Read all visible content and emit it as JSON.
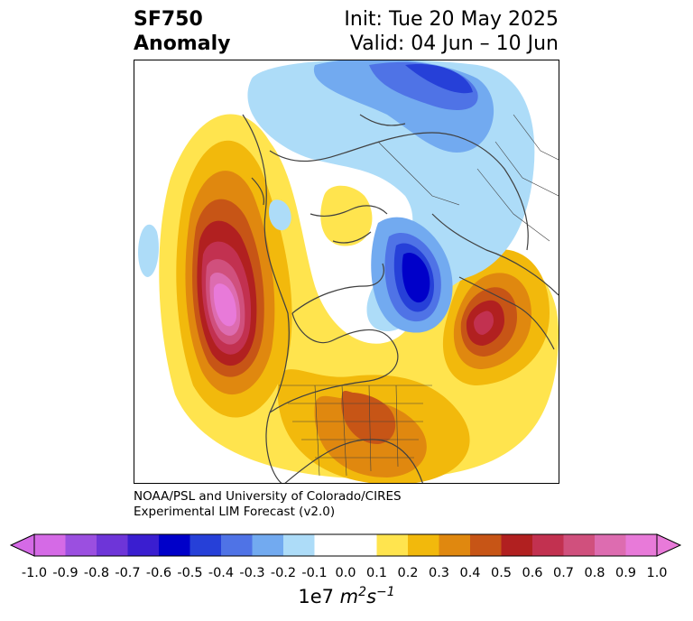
{
  "header": {
    "variable": "SF750",
    "field": "Anomaly",
    "init": "Init: Tue 20 May 2025",
    "valid": "Valid: 04 Jun – 10 Jun"
  },
  "credit": {
    "line1": "NOAA/PSL and University of Colorado/CIRES",
    "line2": "Experimental LIM Forecast (v2.0)"
  },
  "colorbar": {
    "ticks": [
      "-1.0",
      "-0.9",
      "-0.8",
      "-0.7",
      "-0.6",
      "-0.5",
      "-0.4",
      "-0.3",
      "-0.2",
      "-0.1",
      "0.0",
      "0.1",
      "0.2",
      "0.3",
      "0.4",
      "0.5",
      "0.6",
      "0.7",
      "0.8",
      "0.9",
      "1.0"
    ],
    "colors": [
      "#d56ae6",
      "#9b4fe0",
      "#6e35d8",
      "#3a1ed0",
      "#0000c9",
      "#2640d8",
      "#4f73e6",
      "#72aaf0",
      "#addcf8",
      "#ffffff",
      "#ffffff",
      "#ffe44e",
      "#f2b90c",
      "#e0880f",
      "#c75516",
      "#b12020",
      "#c23150",
      "#d0507d",
      "#dd6cb0",
      "#e87ad9"
    ],
    "extend_low_color": "#d56ae6",
    "extend_high_color": "#e87ad9",
    "units_prefix": "1e7 ",
    "units_main": "m",
    "units_sup1": "2",
    "units_main2": "s",
    "units_sup2": "−1"
  },
  "map": {
    "projection": "north-polar-stereographic",
    "coastline_color": "#404040",
    "anomaly_features": [
      {
        "name": "west-pacific-high",
        "sign": "positive",
        "peak": 0.9
      },
      {
        "name": "eastern-us-high",
        "sign": "positive",
        "peak": 0.4
      },
      {
        "name": "europe-high",
        "sign": "positive",
        "peak": 0.6
      },
      {
        "name": "arctic-low",
        "sign": "negative",
        "peak": -0.6
      },
      {
        "name": "siberia-low",
        "sign": "negative",
        "peak": -0.5
      }
    ]
  }
}
